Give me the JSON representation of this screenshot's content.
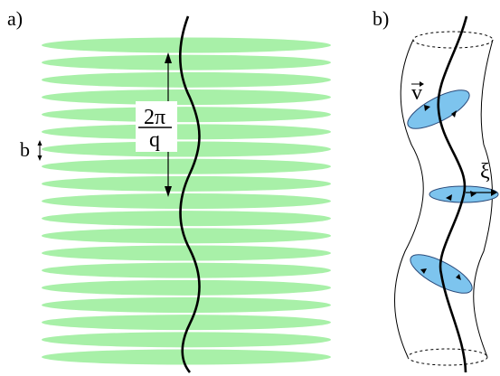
{
  "panel_a": {
    "label": "a)",
    "b_label": "b",
    "period_numerator": "2π",
    "period_denominator": "q",
    "disc_count": 19,
    "disc_color": "#a8f0a8"
  },
  "panel_b": {
    "label": "b)",
    "v_label": "v",
    "xi_label": "ξ",
    "disc_color": "#7dc4ee",
    "disc_stroke": "#2a4a7a"
  }
}
